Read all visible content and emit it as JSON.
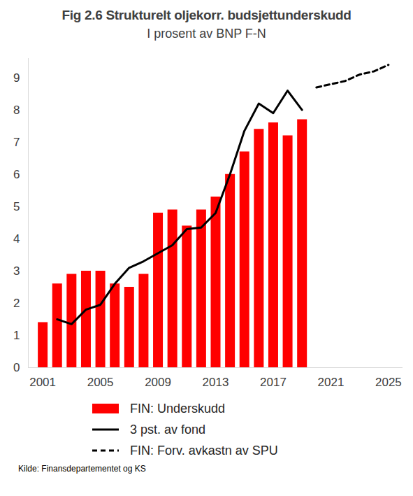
{
  "chart_data": {
    "type": "bar",
    "title": "Fig 2.6 Strukturelt oljekorr. budsjettunderskudd",
    "subtitle": "I prosent av BNP F-N",
    "caption": "Kilde: Finansdepartementet og KS",
    "x": [
      2001,
      2002,
      2003,
      2004,
      2005,
      2006,
      2007,
      2008,
      2009,
      2010,
      2011,
      2012,
      2013,
      2014,
      2015,
      2016,
      2017,
      2018,
      2019,
      2020,
      2021,
      2022,
      2023,
      2024,
      2025
    ],
    "series": [
      {
        "name": "FIN: Underskudd",
        "type": "bar",
        "color": "#ff0000",
        "values": [
          1.4,
          2.6,
          2.9,
          3.0,
          3.0,
          2.6,
          2.5,
          2.9,
          4.8,
          4.9,
          4.4,
          4.9,
          5.3,
          6.0,
          6.7,
          7.4,
          7.6,
          7.2,
          7.7,
          null,
          null,
          null,
          null,
          null,
          null
        ]
      },
      {
        "name": "3 pst. av fond",
        "type": "line",
        "color": "#000000",
        "line_style": "solid",
        "values": [
          null,
          1.5,
          1.35,
          1.8,
          1.95,
          2.6,
          3.1,
          3.3,
          3.55,
          3.8,
          4.3,
          4.35,
          4.8,
          6.0,
          7.35,
          8.2,
          7.9,
          8.6,
          8.0,
          null,
          null,
          null,
          null,
          null,
          null
        ]
      },
      {
        "name": "FIN: Forv. avkastn av SPU",
        "type": "line",
        "color": "#000000",
        "line_style": "dashed",
        "values": [
          null,
          null,
          null,
          null,
          null,
          null,
          null,
          null,
          null,
          null,
          null,
          null,
          null,
          null,
          null,
          null,
          null,
          null,
          null,
          8.7,
          8.8,
          8.9,
          9.1,
          9.2,
          9.4
        ]
      }
    ],
    "xlim": [
      2000,
      2026
    ],
    "xticks": [
      2001,
      2005,
      2009,
      2013,
      2017,
      2021,
      2025
    ],
    "ylim": [
      0,
      9.6
    ],
    "yticks": [
      0,
      1,
      2,
      3,
      4,
      5,
      6,
      7,
      8,
      9
    ],
    "grid": false,
    "legend": "bottom"
  }
}
